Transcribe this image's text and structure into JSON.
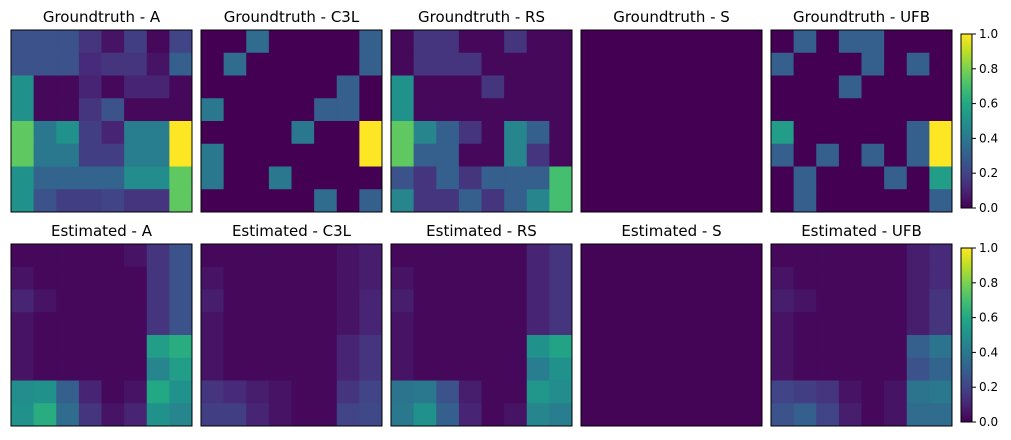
{
  "chart_data": {
    "type": "heatmap",
    "colormap": "viridis",
    "vmin": 0.0,
    "vmax": 1.0,
    "grid": false,
    "axis_ticks": false,
    "colorbar_ticks": [
      "0.0",
      "0.2",
      "0.4",
      "0.6",
      "0.8",
      "1.0"
    ],
    "colorbar_tick_values": [
      0.0,
      0.2,
      0.4,
      0.6,
      0.8,
      1.0
    ],
    "rows": [
      {
        "name": "Groundtruth",
        "panels": [
          {
            "title": "Groundtruth - A",
            "matrix": [
              [
                0.25,
                0.25,
                0.25,
                0.15,
                0.05,
                0.18,
                0.02,
                0.2
              ],
              [
                0.25,
                0.25,
                0.25,
                0.12,
                0.15,
                0.15,
                0.05,
                0.3
              ],
              [
                0.5,
                0.02,
                0.02,
                0.1,
                0.02,
                0.1,
                0.1,
                0.02
              ],
              [
                0.5,
                0.02,
                0.02,
                0.15,
                0.25,
                0.02,
                0.02,
                0.02
              ],
              [
                0.75,
                0.4,
                0.5,
                0.18,
                0.1,
                0.42,
                0.42,
                1.0
              ],
              [
                0.75,
                0.4,
                0.4,
                0.18,
                0.18,
                0.42,
                0.42,
                1.0
              ],
              [
                0.5,
                0.32,
                0.32,
                0.32,
                0.32,
                0.48,
                0.48,
                0.75
              ],
              [
                0.5,
                0.25,
                0.18,
                0.18,
                0.2,
                0.15,
                0.15,
                0.75
              ]
            ]
          },
          {
            "title": "Groundtruth - C3L",
            "matrix": [
              [
                0.0,
                0.0,
                0.35,
                0.0,
                0.0,
                0.0,
                0.0,
                0.3
              ],
              [
                0.0,
                0.35,
                0.0,
                0.0,
                0.0,
                0.0,
                0.0,
                0.3
              ],
              [
                0.0,
                0.0,
                0.0,
                0.0,
                0.0,
                0.0,
                0.3,
                0.0
              ],
              [
                0.4,
                0.0,
                0.0,
                0.0,
                0.0,
                0.3,
                0.3,
                0.0
              ],
              [
                0.0,
                0.0,
                0.0,
                0.0,
                0.4,
                0.0,
                0.0,
                1.0
              ],
              [
                0.4,
                0.0,
                0.0,
                0.0,
                0.0,
                0.0,
                0.0,
                1.0
              ],
              [
                0.4,
                0.0,
                0.0,
                0.4,
                0.0,
                0.0,
                0.0,
                0.0
              ],
              [
                0.0,
                0.0,
                0.0,
                0.0,
                0.0,
                0.35,
                0.0,
                0.3
              ]
            ]
          },
          {
            "title": "Groundtruth - RS",
            "matrix": [
              [
                0.02,
                0.15,
                0.15,
                0.02,
                0.02,
                0.15,
                0.02,
                0.02
              ],
              [
                0.02,
                0.15,
                0.15,
                0.15,
                0.02,
                0.02,
                0.02,
                0.02
              ],
              [
                0.5,
                0.02,
                0.02,
                0.02,
                0.15,
                0.02,
                0.02,
                0.02
              ],
              [
                0.5,
                0.02,
                0.02,
                0.02,
                0.02,
                0.02,
                0.02,
                0.02
              ],
              [
                0.75,
                0.45,
                0.3,
                0.15,
                0.02,
                0.45,
                0.3,
                0.02
              ],
              [
                0.75,
                0.3,
                0.3,
                0.02,
                0.02,
                0.45,
                0.15,
                0.02
              ],
              [
                0.25,
                0.15,
                0.3,
                0.15,
                0.3,
                0.3,
                0.3,
                0.7
              ],
              [
                0.45,
                0.15,
                0.15,
                0.3,
                0.15,
                0.3,
                0.45,
                0.7
              ]
            ]
          },
          {
            "title": "Groundtruth - S",
            "matrix": [
              [
                0,
                0,
                0,
                0,
                0,
                0,
                0,
                0
              ],
              [
                0,
                0,
                0,
                0,
                0,
                0,
                0,
                0
              ],
              [
                0,
                0,
                0,
                0,
                0,
                0,
                0,
                0
              ],
              [
                0,
                0,
                0,
                0,
                0,
                0,
                0,
                0
              ],
              [
                0,
                0,
                0,
                0,
                0,
                0,
                0,
                0
              ],
              [
                0,
                0,
                0,
                0,
                0,
                0,
                0,
                0
              ],
              [
                0,
                0,
                0,
                0,
                0,
                0,
                0,
                0
              ],
              [
                0,
                0,
                0,
                0,
                0,
                0,
                0,
                0
              ]
            ]
          },
          {
            "title": "Groundtruth - UFB",
            "matrix": [
              [
                0.0,
                0.3,
                0.0,
                0.3,
                0.3,
                0.0,
                0.0,
                0.0
              ],
              [
                0.3,
                0.0,
                0.0,
                0.0,
                0.3,
                0.0,
                0.3,
                0.0
              ],
              [
                0.0,
                0.0,
                0.0,
                0.3,
                0.0,
                0.0,
                0.0,
                0.0
              ],
              [
                0.0,
                0.0,
                0.0,
                0.0,
                0.0,
                0.0,
                0.0,
                0.0
              ],
              [
                0.55,
                0.0,
                0.0,
                0.0,
                0.0,
                0.0,
                0.3,
                1.0
              ],
              [
                0.3,
                0.0,
                0.3,
                0.0,
                0.3,
                0.0,
                0.3,
                1.0
              ],
              [
                0.0,
                0.3,
                0.0,
                0.0,
                0.0,
                0.3,
                0.0,
                0.55
              ],
              [
                0.0,
                0.3,
                0.0,
                0.0,
                0.0,
                0.0,
                0.0,
                0.3
              ]
            ]
          }
        ]
      },
      {
        "name": "Estimated",
        "panels": [
          {
            "title": "Estimated - A",
            "matrix": [
              [
                0.02,
                0.02,
                0.02,
                0.02,
                0.02,
                0.05,
                0.15,
                0.25
              ],
              [
                0.05,
                0.02,
                0.02,
                0.02,
                0.02,
                0.02,
                0.15,
                0.25
              ],
              [
                0.1,
                0.05,
                0.02,
                0.02,
                0.02,
                0.02,
                0.15,
                0.25
              ],
              [
                0.05,
                0.02,
                0.02,
                0.02,
                0.02,
                0.02,
                0.15,
                0.25
              ],
              [
                0.05,
                0.02,
                0.02,
                0.02,
                0.02,
                0.02,
                0.55,
                0.62
              ],
              [
                0.05,
                0.02,
                0.02,
                0.02,
                0.02,
                0.02,
                0.45,
                0.55
              ],
              [
                0.48,
                0.5,
                0.3,
                0.1,
                0.02,
                0.05,
                0.6,
                0.5
              ],
              [
                0.5,
                0.62,
                0.35,
                0.15,
                0.05,
                0.1,
                0.5,
                0.45
              ]
            ]
          },
          {
            "title": "Estimated - C3L",
            "matrix": [
              [
                0.02,
                0.02,
                0.02,
                0.02,
                0.02,
                0.02,
                0.05,
                0.08
              ],
              [
                0.05,
                0.02,
                0.02,
                0.02,
                0.02,
                0.02,
                0.05,
                0.08
              ],
              [
                0.08,
                0.02,
                0.02,
                0.02,
                0.02,
                0.02,
                0.05,
                0.1
              ],
              [
                0.05,
                0.02,
                0.02,
                0.02,
                0.02,
                0.02,
                0.05,
                0.1
              ],
              [
                0.05,
                0.02,
                0.02,
                0.02,
                0.02,
                0.02,
                0.1,
                0.15
              ],
              [
                0.05,
                0.02,
                0.02,
                0.02,
                0.02,
                0.02,
                0.1,
                0.15
              ],
              [
                0.15,
                0.12,
                0.08,
                0.05,
                0.02,
                0.02,
                0.15,
                0.2
              ],
              [
                0.18,
                0.18,
                0.1,
                0.05,
                0.02,
                0.02,
                0.2,
                0.22
              ]
            ]
          },
          {
            "title": "Estimated - RS",
            "matrix": [
              [
                0.02,
                0.02,
                0.02,
                0.02,
                0.02,
                0.02,
                0.1,
                0.15
              ],
              [
                0.05,
                0.02,
                0.02,
                0.02,
                0.02,
                0.02,
                0.1,
                0.15
              ],
              [
                0.08,
                0.02,
                0.02,
                0.02,
                0.02,
                0.02,
                0.1,
                0.15
              ],
              [
                0.05,
                0.02,
                0.02,
                0.02,
                0.02,
                0.02,
                0.1,
                0.15
              ],
              [
                0.05,
                0.02,
                0.02,
                0.02,
                0.02,
                0.02,
                0.5,
                0.58
              ],
              [
                0.05,
                0.02,
                0.02,
                0.02,
                0.02,
                0.02,
                0.42,
                0.5
              ],
              [
                0.38,
                0.4,
                0.25,
                0.08,
                0.02,
                0.02,
                0.52,
                0.48
              ],
              [
                0.4,
                0.5,
                0.3,
                0.1,
                0.02,
                0.05,
                0.45,
                0.42
              ]
            ]
          },
          {
            "title": "Estimated - S",
            "matrix": [
              [
                0.01,
                0.01,
                0.01,
                0.01,
                0.01,
                0.01,
                0.01,
                0.01
              ],
              [
                0.01,
                0.01,
                0.01,
                0.01,
                0.01,
                0.01,
                0.01,
                0.01
              ],
              [
                0.01,
                0.01,
                0.01,
                0.01,
                0.01,
                0.01,
                0.01,
                0.01
              ],
              [
                0.01,
                0.01,
                0.01,
                0.01,
                0.01,
                0.01,
                0.01,
                0.01
              ],
              [
                0.01,
                0.01,
                0.01,
                0.01,
                0.01,
                0.01,
                0.01,
                0.01
              ],
              [
                0.01,
                0.01,
                0.01,
                0.01,
                0.01,
                0.01,
                0.01,
                0.01
              ],
              [
                0.01,
                0.01,
                0.01,
                0.01,
                0.01,
                0.01,
                0.01,
                0.01
              ],
              [
                0.01,
                0.01,
                0.01,
                0.01,
                0.01,
                0.01,
                0.01,
                0.01
              ]
            ]
          },
          {
            "title": "Estimated - UFB",
            "matrix": [
              [
                0.02,
                0.02,
                0.02,
                0.02,
                0.02,
                0.02,
                0.08,
                0.12
              ],
              [
                0.05,
                0.02,
                0.02,
                0.02,
                0.02,
                0.02,
                0.08,
                0.12
              ],
              [
                0.08,
                0.05,
                0.02,
                0.02,
                0.02,
                0.02,
                0.08,
                0.15
              ],
              [
                0.05,
                0.02,
                0.02,
                0.02,
                0.02,
                0.02,
                0.08,
                0.15
              ],
              [
                0.05,
                0.02,
                0.02,
                0.02,
                0.02,
                0.02,
                0.3,
                0.38
              ],
              [
                0.05,
                0.02,
                0.02,
                0.02,
                0.02,
                0.02,
                0.25,
                0.32
              ],
              [
                0.2,
                0.18,
                0.15,
                0.05,
                0.02,
                0.05,
                0.38,
                0.4
              ],
              [
                0.25,
                0.3,
                0.2,
                0.08,
                0.02,
                0.05,
                0.35,
                0.35
              ]
            ]
          }
        ]
      }
    ]
  }
}
